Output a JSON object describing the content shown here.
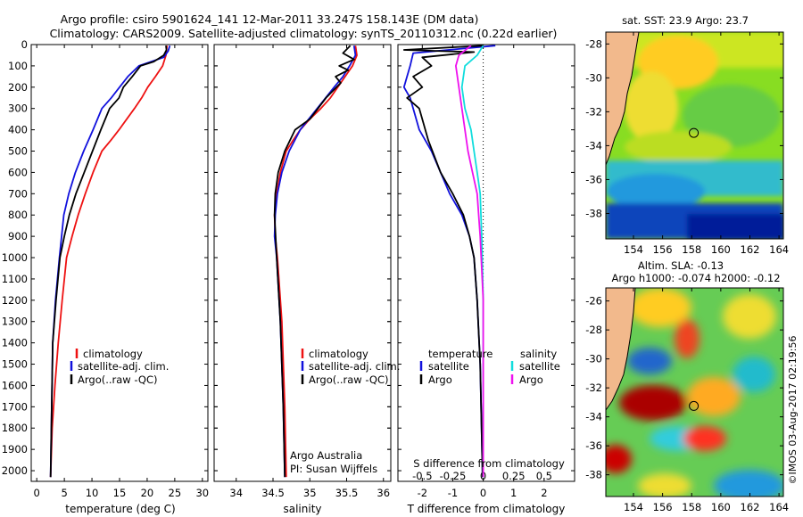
{
  "header": {
    "line1": "Argo profile: csiro 5901624_141 12-Mar-2011 33.247S 158.143E (DM data)",
    "line2": "Climatology: CARS2009. Satellite-adjusted climatology: synTS_20110312.nc (0.22d earlier)"
  },
  "footer": {
    "credit": "©IMOS 03-Aug-2017 02:19:56"
  },
  "colors": {
    "climatology": "#ee1111",
    "satellite": "#1111dd",
    "argo": "#000000",
    "cyan": "#11dddd",
    "magenta": "#ee11ee"
  },
  "chart_data": [
    {
      "id": "temperature",
      "type": "line",
      "xlabel": "temperature (deg C)",
      "xlim": [
        -1,
        31
      ],
      "xticks": [
        0,
        5,
        10,
        15,
        20,
        25,
        30
      ],
      "ylim": [
        0,
        2050
      ],
      "yticks": [
        0,
        100,
        200,
        300,
        400,
        500,
        600,
        700,
        800,
        900,
        1000,
        1100,
        1200,
        1300,
        1400,
        1500,
        1600,
        1700,
        1800,
        1900,
        2000
      ],
      "legend": [
        "climatology",
        "satellite-adj. clim.",
        "Argo(..raw -QC)"
      ],
      "series": [
        {
          "name": "climatology",
          "color": "#ee1111",
          "x": [
            23.6,
            23.4,
            22.8,
            21.5,
            20.1,
            19.0,
            17.7,
            16.3,
            14.9,
            13.4,
            11.8,
            10.2,
            8.8,
            7.5,
            6.4,
            5.4,
            4.6,
            3.9,
            3.3,
            2.8,
            2.5
          ],
          "y": [
            5,
            50,
            100,
            150,
            200,
            250,
            300,
            350,
            400,
            450,
            500,
            600,
            700,
            800,
            900,
            1000,
            1200,
            1400,
            1600,
            1800,
            2030
          ]
        },
        {
          "name": "satellite-adj. clim.",
          "color": "#1111dd",
          "x": [
            24.1,
            23.8,
            23.0,
            18.5,
            16.5,
            15.0,
            13.5,
            11.8,
            10.2,
            8.5,
            7.0,
            5.8,
            4.9,
            4.1,
            3.4,
            2.9,
            2.5
          ],
          "y": [
            5,
            30,
            60,
            100,
            150,
            200,
            250,
            300,
            400,
            500,
            600,
            700,
            800,
            1000,
            1200,
            1400,
            2030
          ]
        },
        {
          "name": "Argo(..raw -QC)",
          "color": "#000000",
          "x": [
            23.4,
            23.5,
            23.0,
            21.2,
            18.8,
            17.3,
            15.7,
            14.9,
            13.2,
            11.6,
            10.1,
            8.6,
            7.1,
            5.9,
            5.0,
            4.2,
            3.5,
            2.9,
            2.5
          ],
          "y": [
            5,
            25,
            50,
            80,
            100,
            150,
            200,
            250,
            300,
            400,
            500,
            600,
            700,
            800,
            900,
            1000,
            1200,
            1400,
            2030
          ]
        }
      ]
    },
    {
      "id": "salinity",
      "type": "line",
      "xlabel": "salinity",
      "xlim": [
        33.7,
        36.1
      ],
      "xticks": [
        34,
        34.5,
        35,
        35.5,
        36
      ],
      "ylim": [
        0,
        2050
      ],
      "legend": [
        "climatology",
        "satellite-adj. clim.",
        "Argo(..raw -QC)"
      ],
      "annotation": [
        "Argo Australia",
        "PI: Susan Wijffels"
      ],
      "series": [
        {
          "name": "climatology",
          "color": "#ee1111",
          "x": [
            35.62,
            35.64,
            35.58,
            35.48,
            35.38,
            35.28,
            35.15,
            35.0,
            34.87,
            34.77,
            34.68,
            34.6,
            34.55,
            34.52,
            34.53,
            34.56,
            34.62,
            34.66,
            34.68
          ],
          "y": [
            5,
            50,
            100,
            150,
            200,
            250,
            300,
            350,
            400,
            450,
            500,
            600,
            700,
            800,
            900,
            1000,
            1300,
            1700,
            2030
          ]
        },
        {
          "name": "satellite-adj. clim.",
          "color": "#1111dd",
          "x": [
            35.6,
            35.62,
            35.54,
            35.45,
            35.33,
            35.1,
            34.87,
            34.72,
            34.62,
            34.56,
            34.53,
            34.52,
            34.55,
            34.6,
            34.64,
            34.66
          ],
          "y": [
            5,
            50,
            100,
            150,
            200,
            300,
            400,
            500,
            600,
            700,
            800,
            900,
            1000,
            1300,
            1700,
            2030
          ]
        },
        {
          "name": "Argo(..raw -QC)",
          "color": "#000000",
          "x": [
            35.55,
            35.45,
            35.6,
            35.4,
            35.52,
            35.35,
            35.42,
            35.22,
            35.0,
            34.8,
            34.66,
            34.57,
            34.53,
            34.52,
            34.55,
            34.6,
            34.64,
            34.66
          ],
          "y": [
            5,
            40,
            70,
            100,
            120,
            150,
            180,
            250,
            350,
            400,
            500,
            600,
            700,
            800,
            1000,
            1300,
            1700,
            2030
          ]
        }
      ]
    },
    {
      "id": "difference",
      "type": "line",
      "xlabel": "T difference from climatology",
      "x2label": "S difference from climatology",
      "xlim": [
        -2.8,
        3.0
      ],
      "xticks": [
        -2,
        -1,
        0,
        1,
        2
      ],
      "x2ticks": [
        -0.5,
        -0.25,
        0,
        0.25,
        0.5
      ],
      "x2tick_labels": [
        "-0.5",
        "-0.25",
        "0",
        "0.25",
        "0.5"
      ],
      "x2scale": 4,
      "ylim": [
        0,
        2050
      ],
      "legend_temperature": [
        "temperature",
        "satellite",
        "Argo"
      ],
      "legend_salinity": [
        "salinity",
        "satellite",
        "Argo"
      ],
      "series": [
        {
          "name": "satellite",
          "color": "#1111dd",
          "x": [
            0.4,
            -2.3,
            -2.4,
            -2.5,
            -2.6,
            -2.4,
            -2.3,
            -2.1,
            -1.7,
            -1.4,
            -1.1,
            -0.7,
            -0.45,
            -0.3,
            -0.2,
            -0.1,
            -0.02
          ],
          "y": [
            5,
            40,
            100,
            150,
            200,
            250,
            300,
            400,
            500,
            600,
            700,
            800,
            900,
            1000,
            1200,
            1500,
            2030
          ]
        },
        {
          "name": "Argo",
          "color": "#000000",
          "x": [
            0.0,
            -2.6,
            -0.3,
            -2.0,
            -1.7,
            -2.3,
            -2.0,
            -2.5,
            -2.1,
            -1.9,
            -1.8,
            -1.4,
            -1.0,
            -0.65,
            -0.45,
            -0.3,
            -0.2,
            -0.1,
            -0.02
          ],
          "y": [
            5,
            25,
            35,
            60,
            100,
            150,
            200,
            250,
            300,
            400,
            450,
            600,
            700,
            800,
            900,
            1000,
            1200,
            1500,
            2030
          ]
        },
        {
          "name": "salinity satellite",
          "color": "#11dddd",
          "x": [
            0.0,
            -0.2,
            -0.6,
            -0.7,
            -0.6,
            -0.4,
            -0.3,
            -0.2,
            -0.1,
            -0.05,
            0.0,
            0.0
          ],
          "y": [
            5,
            50,
            100,
            200,
            300,
            400,
            500,
            600,
            700,
            900,
            1200,
            2030
          ]
        },
        {
          "name": "salinity Argo",
          "color": "#ee11ee",
          "x": [
            -0.4,
            -0.8,
            -0.9,
            -0.8,
            -0.7,
            -0.6,
            -0.5,
            -0.35,
            -0.2,
            -0.1,
            0.0,
            0.0
          ],
          "y": [
            5,
            50,
            100,
            200,
            300,
            400,
            500,
            600,
            700,
            900,
            1200,
            2030
          ]
        }
      ]
    },
    {
      "id": "sst_map",
      "type": "heatmap",
      "title": "sat. SST: 23.9 Argo: 23.7",
      "xlim": [
        152.1,
        164.3
      ],
      "ylim": [
        -39.5,
        -27.3
      ],
      "xticks": [
        154,
        156,
        158,
        160,
        162,
        164
      ],
      "yticks": [
        -28,
        -30,
        -32,
        -34,
        -36,
        -38
      ],
      "marker": {
        "lon": 158.143,
        "lat": -33.247
      }
    },
    {
      "id": "sla_map",
      "type": "heatmap",
      "title": "Altim. SLA: -0.13",
      "subtitle": "Argo h1000: -0.074 h2000: -0.12",
      "xlim": [
        152.1,
        164.3
      ],
      "ylim": [
        -39.5,
        -25.1
      ],
      "xticks": [
        154,
        156,
        158,
        160,
        162,
        164
      ],
      "yticks": [
        -26,
        -28,
        -30,
        -32,
        -34,
        -36,
        -38
      ],
      "marker": {
        "lon": 158.143,
        "lat": -33.247
      }
    }
  ]
}
